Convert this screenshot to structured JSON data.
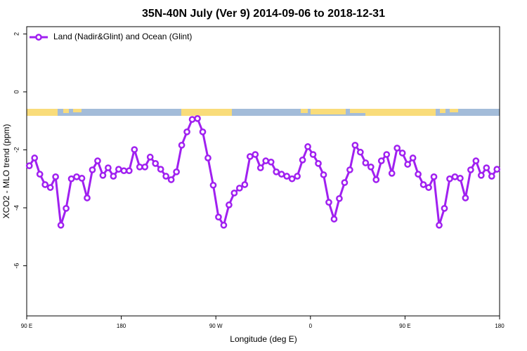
{
  "chart_data": {
    "type": "line",
    "title": "35N-40N July (Ver 9)   2014-09-06 to 2018-12-31",
    "x_label": "Longitude (deg E)",
    "y_label": "XCO2 - MLO trend (ppm)",
    "x": [
      92.5,
      97.5,
      102.5,
      107.5,
      112.5,
      117.5,
      122.5,
      127.5,
      132.5,
      137.5,
      142.5,
      147.5,
      152.5,
      157.5,
      162.5,
      167.5,
      172.5,
      177.5,
      182.5,
      187.5,
      192.5,
      197.5,
      202.5,
      207.5,
      212.5,
      217.5,
      222.5,
      227.5,
      232.5,
      237.5,
      242.5,
      247.5,
      252.5,
      257.5,
      262.5,
      267.5,
      272.5,
      277.5,
      282.5,
      287.5,
      292.5,
      297.5,
      302.5,
      307.5,
      312.5,
      317.5,
      322.5,
      327.5,
      332.5,
      337.5,
      342.5,
      347.5,
      352.5,
      357.5,
      362.5,
      367.5,
      372.5,
      377.5,
      382.5,
      387.5,
      392.5,
      397.5,
      402.5,
      407.5,
      412.5,
      417.5,
      422.5,
      427.5,
      432.5,
      437.5,
      442.5,
      447.5,
      452.5,
      457.5,
      462.5,
      467.5,
      472.5,
      477.5,
      482.5,
      487.5,
      492.5,
      497.5,
      502.5,
      507.5,
      512.5,
      517.5,
      522.5,
      527.5,
      532.5,
      537.5
    ],
    "series": [
      {
        "name": "Land (Nadir&Glint) and Ocean (Glint)",
        "color": "#a020f0",
        "values": [
          -2.55,
          -2.28,
          -2.84,
          -3.2,
          -3.3,
          -2.93,
          -4.6,
          -4.02,
          -3.0,
          -2.93,
          -2.98,
          -3.66,
          -2.69,
          -2.38,
          -2.88,
          -2.62,
          -2.91,
          -2.67,
          -2.72,
          -2.72,
          -1.99,
          -2.59,
          -2.59,
          -2.25,
          -2.47,
          -2.67,
          -2.91,
          -3.03,
          -2.76,
          -1.84,
          -1.38,
          -0.95,
          -0.92,
          -1.38,
          -2.28,
          -3.22,
          -4.32,
          -4.6,
          -3.9,
          -3.49,
          -3.32,
          -3.2,
          -2.23,
          -2.16,
          -2.62,
          -2.38,
          -2.42,
          -2.76,
          -2.84,
          -2.91,
          -3.0,
          -2.91,
          -2.35,
          -1.89,
          -2.16,
          -2.47,
          -2.86,
          -3.81,
          -4.39,
          -3.68,
          -3.13,
          -2.69,
          -1.84,
          -2.08,
          -2.45,
          -2.59,
          -3.03,
          -2.38,
          -2.16,
          -2.81,
          -1.94,
          -2.11,
          -2.5,
          -2.28,
          -2.84,
          -3.2,
          -3.3,
          -2.93,
          -4.6,
          -4.02,
          -3.0,
          -2.93,
          -2.98,
          -3.66,
          -2.69,
          -2.38,
          -2.88,
          -2.62,
          -2.91,
          -2.67
        ]
      }
    ],
    "xlim": [
      90,
      540
    ],
    "xticks": [
      {
        "value": 90,
        "label": "90 E"
      },
      {
        "value": 180,
        "label": "180"
      },
      {
        "value": 270,
        "label": "90 W"
      },
      {
        "value": 360,
        "label": "0"
      },
      {
        "value": 450,
        "label": "90 E"
      },
      {
        "value": 540,
        "label": "180"
      }
    ],
    "ylim": [
      -7.73,
      2.25
    ],
    "yticks": [
      2,
      0,
      -2,
      -4,
      -6
    ],
    "legend": "top-left"
  }
}
